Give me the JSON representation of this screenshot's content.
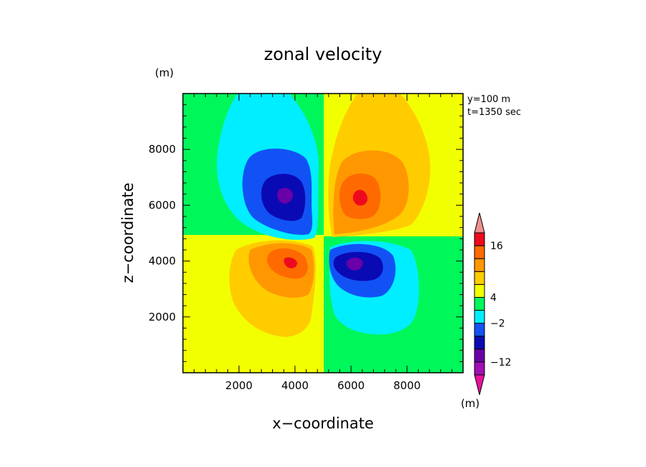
{
  "chart_data": {
    "type": "contour",
    "title": "zonal velocity",
    "xlabel": "x−coordinate",
    "ylabel": "z−coordinate",
    "x_unit": "(m)",
    "y_unit": "(m)",
    "colorbar_unit": "(m)",
    "xlim": [
      0,
      10000
    ],
    "ylim": [
      0,
      10000
    ],
    "x_ticks": [
      2000,
      4000,
      6000,
      8000
    ],
    "y_ticks": [
      2000,
      4000,
      6000,
      8000
    ],
    "x_tick_labels": [
      "2000",
      "4000",
      "6000",
      "8000"
    ],
    "y_tick_labels": [
      "2000",
      "4000",
      "6000",
      "8000"
    ],
    "annotations": [
      "y=100 m",
      "t=1350 sec"
    ],
    "colorbar": {
      "levels": [
        {
          "color": "#e8129c",
          "label": ""
        },
        {
          "color": "#a010b4",
          "label": ""
        },
        {
          "color": "#6a00a8",
          "label": "−12"
        },
        {
          "color": "#0a0ab4",
          "label": ""
        },
        {
          "color": "#1252f5",
          "label": ""
        },
        {
          "color": "#00eeff",
          "label": "−2"
        },
        {
          "color": "#00f75a",
          "label": ""
        },
        {
          "color": "#f2ff00",
          "label": "4"
        },
        {
          "color": "#ffcc00",
          "label": ""
        },
        {
          "color": "#ff9800",
          "label": ""
        },
        {
          "color": "#ff6a00",
          "label": ""
        },
        {
          "color": "#ee0a1e",
          "label": "16"
        },
        {
          "color": "#f09090",
          "label": ""
        }
      ]
    },
    "features": [
      {
        "sign": "negative",
        "center": [
          3800,
          6200
        ],
        "min_level": "−12"
      },
      {
        "sign": "positive",
        "center": [
          6300,
          6300
        ],
        "max_level": "16"
      },
      {
        "sign": "positive",
        "center": [
          3900,
          4000
        ],
        "max_level": "16"
      },
      {
        "sign": "negative",
        "center": [
          6200,
          3900
        ],
        "min_level": "−12"
      }
    ]
  }
}
